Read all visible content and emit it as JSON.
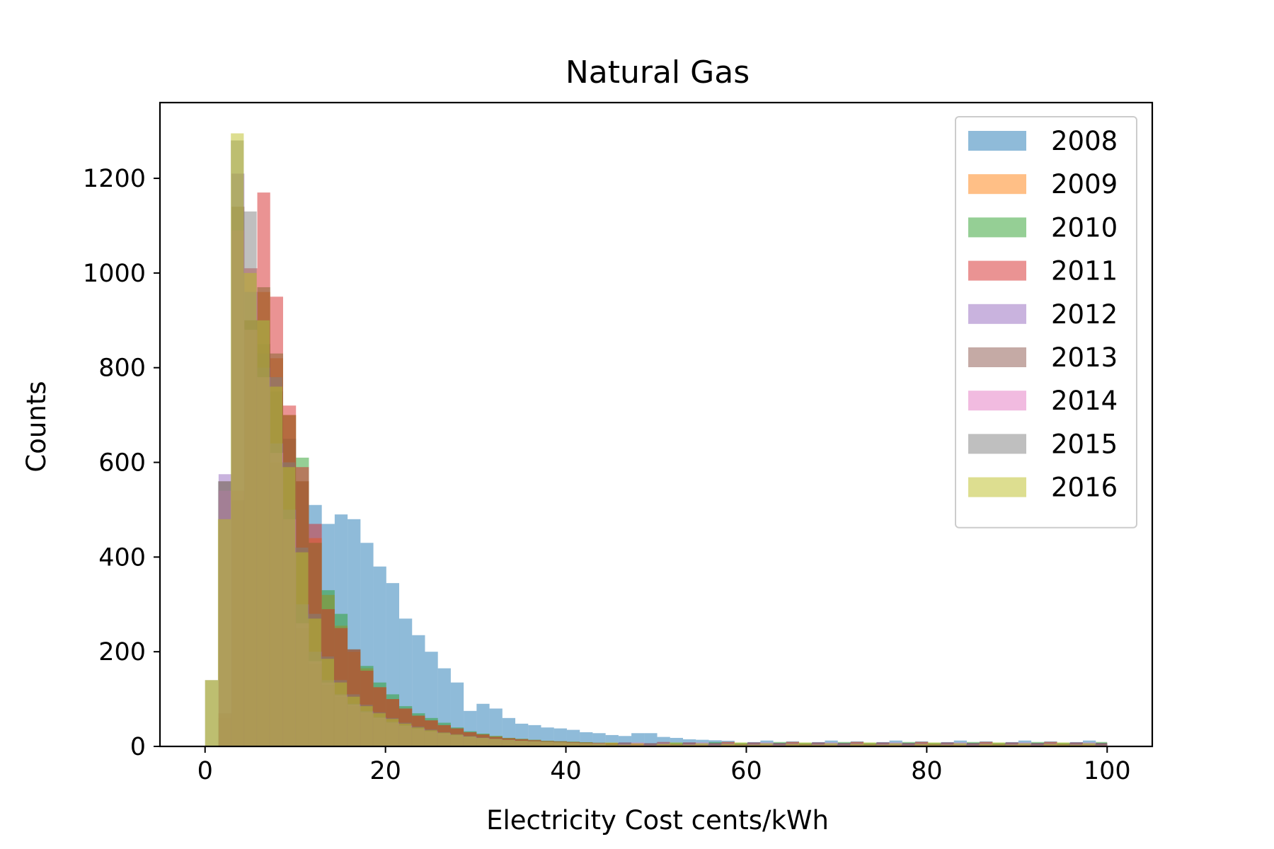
{
  "chart_data": {
    "type": "histogram",
    "title": "Natural Gas",
    "xlabel": "Electricity Cost cents/kWh",
    "ylabel": "Counts",
    "xlim": [
      -5,
      105
    ],
    "ylim": [
      0,
      1360
    ],
    "xticks": [
      0,
      20,
      40,
      60,
      80,
      100
    ],
    "yticks": [
      0,
      200,
      400,
      600,
      800,
      1000,
      1200
    ],
    "bin_width": 1.43,
    "alpha": 0.5,
    "legend": {
      "position": "top-right"
    },
    "series": [
      {
        "name": "2008",
        "color": "#1f77b4",
        "x0": 1.5,
        "values": [
          60,
          300,
          900,
          850,
          750,
          650,
          560,
          510,
          470,
          490,
          480,
          430,
          380,
          345,
          270,
          235,
          200,
          165,
          135,
          75,
          90,
          80,
          60,
          48,
          45,
          40,
          38,
          35,
          30,
          28,
          24,
          22,
          28,
          28,
          20,
          18,
          15,
          14,
          13,
          12
        ],
        "tail": 8
      },
      {
        "name": "2009",
        "color": "#ff7f0e",
        "x0": 1.5,
        "values": [
          60,
          520,
          900,
          960,
          820,
          700,
          560,
          440,
          320,
          255,
          200,
          165,
          125,
          100,
          80,
          65,
          55,
          45,
          38,
          30,
          26,
          22,
          18,
          16,
          14,
          12,
          11,
          10,
          9,
          8,
          7,
          7,
          6,
          6,
          5,
          5
        ],
        "tail": 5
      },
      {
        "name": "2010",
        "color": "#2ca02c",
        "x0": 1.5,
        "values": [
          70,
          520,
          900,
          970,
          830,
          700,
          610,
          430,
          330,
          280,
          205,
          170,
          135,
          110,
          85,
          70,
          60,
          50,
          40,
          32,
          27,
          22,
          18,
          16,
          14,
          12,
          11,
          10,
          9,
          8,
          7,
          7,
          6,
          6
        ],
        "tail": 5
      },
      {
        "name": "2011",
        "color": "#d62728",
        "x0": 1.5,
        "values": [
          70,
          540,
          1010,
          1170,
          950,
          720,
          590,
          470,
          290,
          250,
          205,
          160,
          125,
          100,
          80,
          65,
          55,
          45,
          38,
          30,
          25,
          20,
          17,
          15,
          13,
          11,
          10,
          9,
          8,
          7,
          7,
          6,
          6,
          5
        ],
        "tail": 5
      },
      {
        "name": "2012",
        "color": "#9467bd",
        "x0": 1.5,
        "values": [
          575,
          1210,
          960,
          800,
          640,
          500,
          300,
          200,
          140,
          110,
          90,
          75,
          62,
          52,
          45,
          38,
          32,
          28,
          24,
          21,
          18,
          16,
          14,
          12,
          11,
          10,
          9,
          8,
          7,
          6
        ],
        "tail": 4
      },
      {
        "name": "2013",
        "color": "#8c564b",
        "x0": 1.5,
        "values": [
          560,
          1140,
          900,
          830,
          600,
          480,
          250,
          175,
          130,
          105,
          85,
          70,
          58,
          50,
          42,
          36,
          30,
          26,
          22,
          19,
          16,
          14,
          12,
          11,
          10,
          9,
          8,
          7,
          6
        ],
        "tail": 4
      },
      {
        "name": "2014",
        "color": "#e377c2",
        "x0": 1.5,
        "values": [
          540,
          1090,
          880,
          780,
          620,
          480,
          260,
          180,
          135,
          108,
          88,
          72,
          60,
          50,
          43,
          37,
          31,
          27,
          23,
          20,
          17,
          15,
          13,
          11,
          10,
          9,
          8,
          7,
          6
        ],
        "tail": 4
      },
      {
        "name": "2015",
        "color": "#7f7f7f",
        "x0": 0.0,
        "values": [
          140,
          560,
          1280,
          1130,
          900,
          780,
          600,
          420,
          280,
          190,
          140,
          110,
          88,
          72,
          60,
          50,
          42,
          36,
          30,
          26,
          22,
          19,
          16,
          14,
          12,
          11,
          10,
          9,
          8,
          7,
          6
        ],
        "tail": 4
      },
      {
        "name": "2016",
        "color": "#bcbd22",
        "x0": 0.0,
        "values": [
          140,
          480,
          1295,
          1000,
          900,
          760,
          590,
          410,
          270,
          185,
          135,
          105,
          85,
          70,
          58,
          48,
          40,
          34,
          29,
          25,
          21,
          18,
          16,
          14,
          12,
          11,
          10,
          9,
          8,
          7,
          6
        ],
        "tail": 4
      }
    ]
  }
}
